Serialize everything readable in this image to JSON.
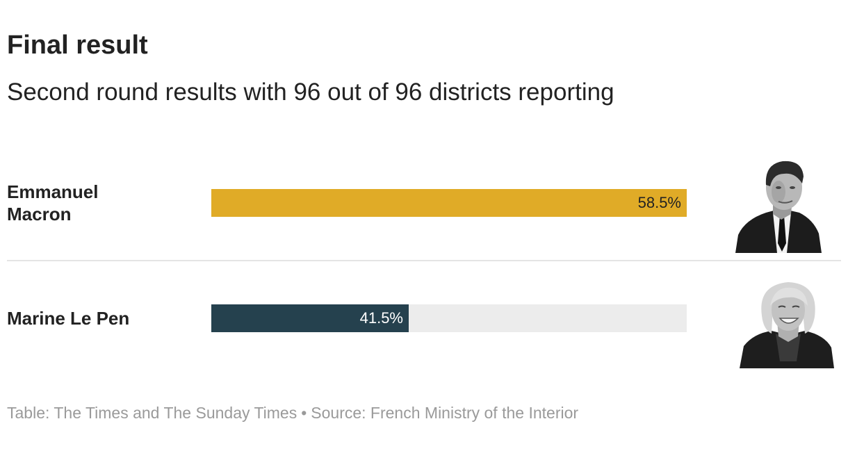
{
  "title": "Final result",
  "subtitle": "Second round results with 96 out of 96 districts reporting",
  "colors": {
    "macron": "#e0ab27",
    "le_pen": "#25414e",
    "track": "#ececec",
    "label_on_gold": "#222222",
    "label_on_dark": "#ffffff"
  },
  "chart_data": {
    "type": "bar",
    "orientation": "horizontal",
    "title": "Final result",
    "subtitle": "Second round results with 96 out of 96 districts reporting",
    "xlim": [
      0,
      100
    ],
    "unit": "%",
    "categories": [
      "Emmanuel Macron",
      "Marine Le Pen"
    ],
    "values": [
      58.5,
      41.5
    ],
    "value_labels": [
      "58.5%",
      "41.5%"
    ]
  },
  "candidates": [
    {
      "name_line1": "Emmanuel",
      "name_line2": "Macron",
      "portrait_icon": "macron-portrait-icon"
    },
    {
      "name": "Marine Le Pen",
      "portrait_icon": "le-pen-portrait-icon"
    }
  ],
  "footer": {
    "credit": "Table: The Times and The Sunday Times",
    "separator": "•",
    "source": "Source: French Ministry of the Interior"
  }
}
